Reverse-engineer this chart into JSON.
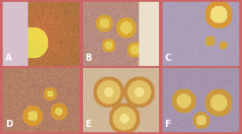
{
  "figsize": [
    2.71,
    1.5
  ],
  "dpi": 100,
  "grid": [
    2,
    3
  ],
  "labels": [
    "A",
    "B",
    "C",
    "D",
    "E",
    "F"
  ],
  "label_color": "white",
  "label_fontsize": 7,
  "border_color": "#cc6666",
  "border_width": 1.5,
  "background_color": "#c0a0a0",
  "panel_colors": [
    {
      "base": "#c8703a",
      "accent": "#d4a030",
      "bg": "#b86040"
    },
    {
      "base": "#b07050",
      "accent": "#c09060",
      "bg": "#907060"
    },
    {
      "base": "#a090b0",
      "accent": "#c08050",
      "bg": "#9090b0"
    },
    {
      "base": "#b87050",
      "accent": "#d08040",
      "bg": "#a06050"
    },
    {
      "base": "#c09050",
      "accent": "#d4a040",
      "bg": "#b08060"
    },
    {
      "base": "#a080a0",
      "accent": "#c09060",
      "bg": "#9080a0"
    }
  ]
}
